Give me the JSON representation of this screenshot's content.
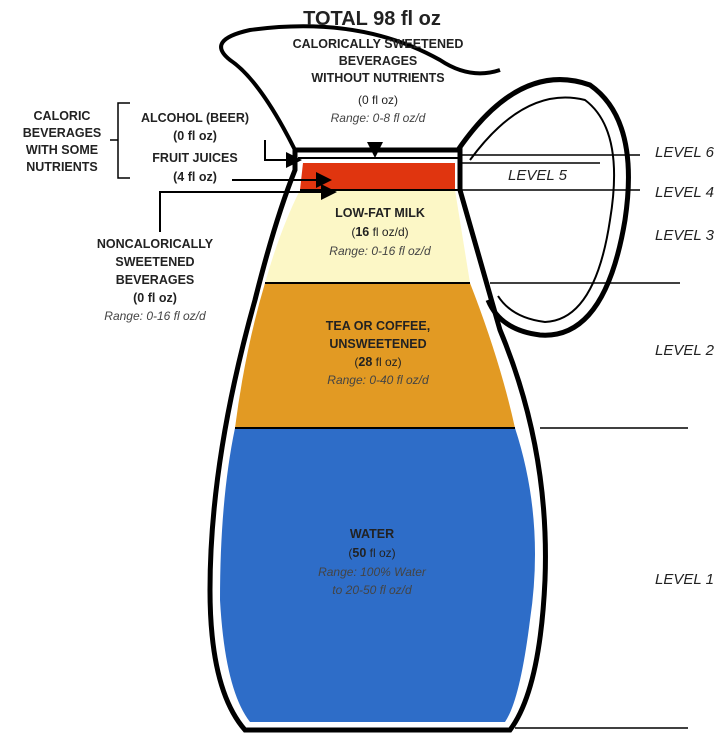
{
  "title": "TOTAL 98 fl oz",
  "calorically_sweetened": {
    "label": [
      "CALORICALLY SWEETENED",
      "BEVERAGES",
      "WITHOUT NUTRIENTS"
    ],
    "amount": "(0 fl oz)",
    "range": "Range: 0-8 fl oz/d"
  },
  "caloric_group": {
    "label": [
      "CALORIC",
      "BEVERAGES",
      "WITH SOME",
      "NUTRIENTS"
    ]
  },
  "alcohol": {
    "label": "ALCOHOL (BEER)",
    "amount": "(0 fl oz)"
  },
  "fruit_juices": {
    "label": "FRUIT JUICES",
    "amount": "(4 fl oz)"
  },
  "noncalorically_sweetened": {
    "label": [
      "NONCALORICALLY",
      "SWEETENED",
      "BEVERAGES"
    ],
    "amount": [
      "(",
      "0",
      " fl oz)"
    ],
    "range": "Range: 0-16 fl oz/d"
  },
  "milk": {
    "label": "LOW-FAT MILK",
    "amount": [
      "(",
      "16",
      " fl oz/d)"
    ],
    "range": "Range: 0-16 fl oz/d"
  },
  "tea_coffee": {
    "label": [
      "TEA OR COFFEE,",
      "UNSWEETENED"
    ],
    "amount": [
      "(",
      "28",
      " fl oz)"
    ],
    "range": "Range: 0-40 fl oz/d"
  },
  "water": {
    "label": "WATER",
    "amount": [
      "(",
      "50",
      " fl oz)"
    ],
    "range": [
      "Range: 100% Water",
      "to 20-50 fl oz/d"
    ]
  },
  "levels": [
    "LEVEL 6",
    "LEVEL 5",
    "LEVEL 4",
    "LEVEL 3",
    "LEVEL 2",
    "LEVEL 1"
  ]
}
